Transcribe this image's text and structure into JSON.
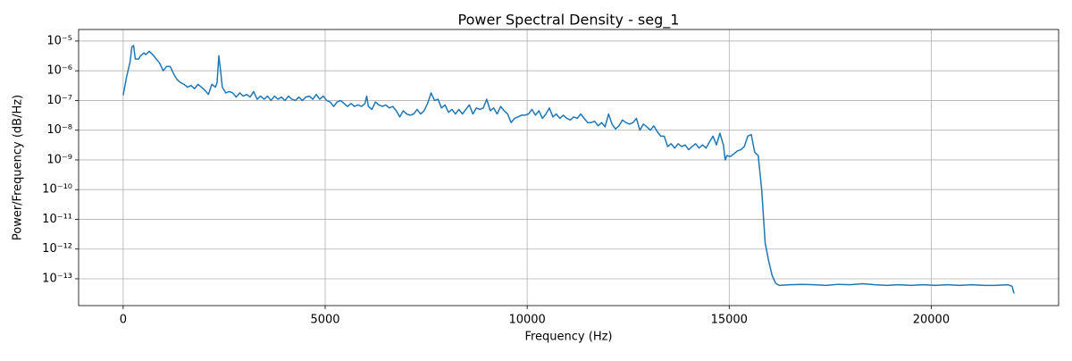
{
  "chart_data": {
    "type": "line",
    "title": "Power Spectral Density - seg_1",
    "x_label": "Frequency (Hz)",
    "y_label": "Power/Frequency (dB/Hz)",
    "color": "#1f77b4",
    "grid": true,
    "y_scale": "log",
    "xlim": [
      -1102.5,
      23152.5
    ],
    "ylim": [
      1.25e-14,
      2.45e-05
    ],
    "xticks": [
      0,
      5000,
      10000,
      15000,
      20000
    ],
    "yticks": [
      {
        "value": 1e-13,
        "label": "10⁻¹³"
      },
      {
        "value": 1e-12,
        "label": "10⁻¹²"
      },
      {
        "value": 1e-11,
        "label": "10⁻¹¹"
      },
      {
        "value": 1e-10,
        "label": "10⁻¹⁰"
      },
      {
        "value": 1e-09,
        "label": "10⁻⁹"
      },
      {
        "value": 1e-08,
        "label": "10⁻⁸"
      },
      {
        "value": 1e-07,
        "label": "10⁻⁷"
      },
      {
        "value": 1e-06,
        "label": "10⁻⁶"
      },
      {
        "value": 1e-05,
        "label": "10⁻⁵"
      }
    ],
    "x": [
      0,
      86,
      172,
      215,
      258,
      300,
      387,
      430,
      517,
      560,
      646,
      732,
      818,
      904,
      990,
      1077,
      1163,
      1249,
      1335,
      1421,
      1507,
      1593,
      1680,
      1766,
      1852,
      1938,
      2024,
      2110,
      2196,
      2282,
      2325,
      2368,
      2411,
      2454,
      2540,
      2626,
      2712,
      2798,
      2885,
      2971,
      3057,
      3143,
      3229,
      3315,
      3402,
      3488,
      3574,
      3660,
      3746,
      3832,
      3918,
      4005,
      4091,
      4177,
      4263,
      4349,
      4435,
      4521,
      4608,
      4694,
      4780,
      4866,
      4952,
      5038,
      5124,
      5210,
      5296,
      5382,
      5468,
      5554,
      5640,
      5726,
      5812,
      5898,
      5984,
      6028,
      6070,
      6157,
      6243,
      6329,
      6415,
      6501,
      6587,
      6673,
      6760,
      6846,
      6932,
      7018,
      7104,
      7190,
      7276,
      7362,
      7449,
      7535,
      7621,
      7707,
      7793,
      7879,
      7966,
      8052,
      8138,
      8224,
      8310,
      8396,
      8482,
      8568,
      8655,
      8741,
      8827,
      8913,
      8999,
      9085,
      9171,
      9258,
      9344,
      9430,
      9516,
      9602,
      9688,
      9774,
      9860,
      9947,
      10033,
      10119,
      10205,
      10291,
      10377,
      10463,
      10549,
      10636,
      10722,
      10808,
      10894,
      10980,
      11066,
      11152,
      11239,
      11325,
      11411,
      11497,
      11583,
      11669,
      11755,
      11842,
      11928,
      12014,
      12100,
      12186,
      12272,
      12358,
      12444,
      12531,
      12617,
      12703,
      12789,
      12875,
      12961,
      13047,
      13134,
      13220,
      13306,
      13392,
      13478,
      13564,
      13650,
      13737,
      13823,
      13909,
      13995,
      14081,
      14167,
      14253,
      14340,
      14426,
      14512,
      14598,
      14684,
      14770,
      14856,
      14900,
      14943,
      15029,
      15115,
      15201,
      15287,
      15373,
      15460,
      15546,
      15632,
      15718,
      15804,
      15890,
      15976,
      16062,
      16148,
      16235,
      16500,
      16800,
      17100,
      17400,
      17700,
      18000,
      18300,
      18600,
      18900,
      19200,
      19500,
      19800,
      20100,
      20400,
      20700,
      21000,
      21300,
      21600,
      21900,
      22000,
      22050
    ],
    "values": [
      1.5e-07,
      6.3e-07,
      2e-06,
      6.3e-06,
      7.1e-06,
      2.5e-06,
      2.5e-06,
      3.2e-06,
      4e-06,
      3.5e-06,
      4.5e-06,
      3.5e-06,
      2.5e-06,
      1.8e-06,
      1e-06,
      1.4e-06,
      1.4e-06,
      7.9e-07,
      5e-07,
      4e-07,
      3.5e-07,
      2.8e-07,
      3.2e-07,
      2.5e-07,
      3.5e-07,
      2.8e-07,
      2.2e-07,
      1.6e-07,
      3.5e-07,
      2.8e-07,
      4e-07,
      3.2e-06,
      1e-06,
      2.8e-07,
      1.8e-07,
      2e-07,
      1.8e-07,
      1.3e-07,
      1.8e-07,
      1.4e-07,
      1.6e-07,
      1.3e-07,
      2e-07,
      1.1e-07,
      1.4e-07,
      1.1e-07,
      1.4e-07,
      1e-07,
      1.4e-07,
      1.1e-07,
      1.3e-07,
      1e-07,
      1.4e-07,
      1.1e-07,
      1e-07,
      1.3e-07,
      1e-07,
      1.3e-07,
      1.4e-07,
      1.1e-07,
      1.6e-07,
      1.1e-07,
      1.4e-07,
      1e-07,
      8.9e-08,
      6.3e-08,
      8.9e-08,
      1e-07,
      7.9e-08,
      6.3e-08,
      7.9e-08,
      6.3e-08,
      7.1e-08,
      6.3e-08,
      7.9e-08,
      1.4e-07,
      6.3e-08,
      5e-08,
      8.9e-08,
      7.1e-08,
      6.3e-08,
      7.1e-08,
      5.6e-08,
      6.3e-08,
      4.5e-08,
      2.8e-08,
      4.5e-08,
      3.5e-08,
      3.2e-08,
      3.5e-08,
      5e-08,
      3.5e-08,
      4.5e-08,
      7.9e-08,
      1.8e-07,
      1e-07,
      1.1e-07,
      5.6e-08,
      7.1e-08,
      4e-08,
      5e-08,
      3.5e-08,
      5e-08,
      3.5e-08,
      5e-08,
      7.1e-08,
      3.5e-08,
      5.6e-08,
      5e-08,
      5.6e-08,
      1.1e-07,
      4.5e-08,
      5.6e-08,
      3.5e-08,
      6.3e-08,
      4.5e-08,
      3.5e-08,
      1.8e-08,
      2.5e-08,
      2.8e-08,
      3.2e-08,
      3.2e-08,
      3.5e-08,
      5e-08,
      3.2e-08,
      4.5e-08,
      2.5e-08,
      3.5e-08,
      5.6e-08,
      2.8e-08,
      3.5e-08,
      2.5e-08,
      3.2e-08,
      2.5e-08,
      2.2e-08,
      2.8e-08,
      2.5e-08,
      3.5e-08,
      2.5e-08,
      1.8e-08,
      1.8e-08,
      2e-08,
      1.4e-08,
      1.8e-08,
      1.3e-08,
      3.5e-08,
      1.6e-08,
      1.1e-08,
      1.4e-08,
      2.2e-08,
      1.8e-08,
      1.6e-08,
      1.8e-08,
      2.5e-08,
      1e-08,
      1.6e-08,
      1.3e-08,
      1e-08,
      1.4e-08,
      8.9e-09,
      6.3e-09,
      6.3e-09,
      2.8e-09,
      3.5e-09,
      2.5e-09,
      3.5e-09,
      2.8e-09,
      3.2e-09,
      2.2e-09,
      2.8e-09,
      3.5e-09,
      2.5e-09,
      3.2e-09,
      2.5e-09,
      4e-09,
      6.3e-09,
      3.2e-09,
      7.9e-09,
      3.2e-09,
      1e-09,
      1.4e-09,
      1.3e-09,
      1.6e-09,
      2e-09,
      2.2e-09,
      2.8e-09,
      6.3e-09,
      7.1e-09,
      1.8e-09,
      1.4e-09,
      1e-10,
      1.6e-12,
      4e-13,
      1.3e-13,
      7.1e-14,
      6e-14,
      6.3e-14,
      6.5e-14,
      6.3e-14,
      6e-14,
      6.5e-14,
      6.3e-14,
      6.8e-14,
      6.3e-14,
      6e-14,
      6.3e-14,
      6e-14,
      6.3e-14,
      6e-14,
      6.3e-14,
      6e-14,
      6.3e-14,
      6e-14,
      6e-14,
      6.3e-14,
      5.6e-14,
      3.2e-14
    ]
  }
}
